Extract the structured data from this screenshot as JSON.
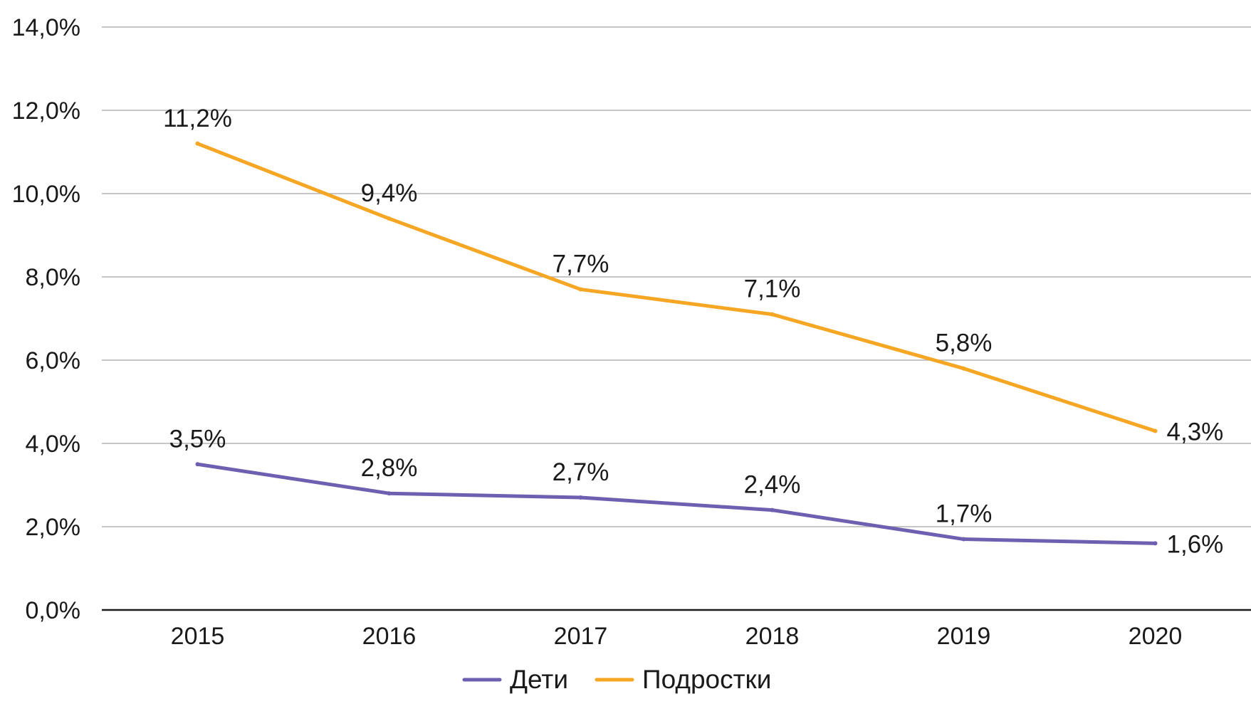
{
  "chart_data": {
    "type": "line",
    "title": "",
    "xlabel": "",
    "ylabel": "",
    "categories": [
      "2015",
      "2016",
      "2017",
      "2018",
      "2019",
      "2020"
    ],
    "series": [
      {
        "name": "Дети",
        "color": "#6e5fb0",
        "values": [
          3.5,
          2.8,
          2.7,
          2.4,
          1.7,
          1.6
        ],
        "labels": [
          "3,5%",
          "2,8%",
          "2,7%",
          "2,4%",
          "1,7%",
          "1,6%"
        ]
      },
      {
        "name": "Подростки",
        "color": "#f5a623",
        "values": [
          11.2,
          9.4,
          7.7,
          7.1,
          5.8,
          4.3
        ],
        "labels": [
          "11,2%",
          "9,4%",
          "7,7%",
          "7,1%",
          "5,8%",
          "4,3%"
        ]
      }
    ],
    "ylim": [
      0,
      14
    ],
    "yticks": [
      0,
      2,
      4,
      6,
      8,
      10,
      12,
      14
    ],
    "ytick_labels": [
      "0,0%",
      "2,0%",
      "4,0%",
      "6,0%",
      "8,0%",
      "10,0%",
      "12,0%",
      "14,0%"
    ],
    "grid": true,
    "legend_position": "bottom-center"
  }
}
